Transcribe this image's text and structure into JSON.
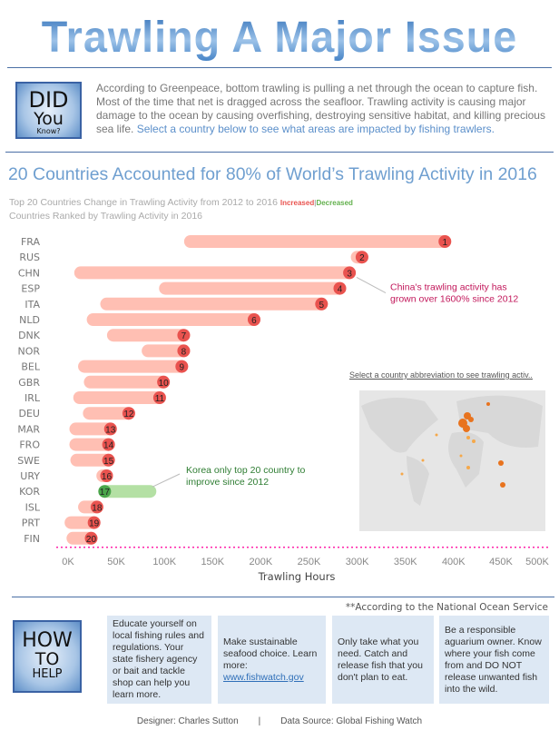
{
  "title": "Trawling A Major Issue",
  "did_you_know": {
    "line1": "DID",
    "line2": "You",
    "line3": "Know?"
  },
  "intro": {
    "text": "According to Greenpeace, bottom trawling is pulling a net through the ocean to capture fish. Most of the time that net is dragged across the seafloor. Trawling activity is causing major damage to the ocean by causing overfishing, destroying sensitive habitat, and killing precious sea life.",
    "highlight": "Select a country below to see what areas are impacted by fishing trawlers."
  },
  "headline": "20 Countries Accounted for 80% of World’s Trawling Activity in 2016",
  "subtitle": {
    "main": "Top 20 Countries Change in Trawling Activity from 2012 to 2016",
    "increased": "Increased",
    "sep": "|",
    "decreased": "Decreased",
    "line2": "Countries Ranked by Trawling Activity in 2016"
  },
  "colors": {
    "increased": "#e9534f",
    "increased_bar": "#ffbfb3",
    "decreased": "#4aa54a",
    "decreased_bar": "#b4e0a4"
  },
  "chart_data": {
    "type": "bar",
    "subtype": "dumbbell",
    "xlabel": "Trawling Hours",
    "xlim": [
      0,
      500000
    ],
    "ticks": [
      "0K",
      "50K",
      "100K",
      "150K",
      "200K",
      "250K",
      "300K",
      "350K",
      "400K",
      "450K",
      "500K"
    ],
    "tick_values": [
      0,
      50,
      100,
      150,
      200,
      250,
      300,
      350,
      400,
      450,
      500
    ],
    "categories": [
      "FRA",
      "RUS",
      "CHN",
      "ESP",
      "ITA",
      "NLD",
      "DNK",
      "NOR",
      "BEL",
      "GBR",
      "IRL",
      "DEU",
      "MAR",
      "FRO",
      "SWE",
      "URY",
      "KOR",
      "ISL",
      "PRT",
      "FIN"
    ],
    "series": [
      {
        "name": "2012 (K hours)",
        "values": [
          127,
          300,
          13,
          101,
          40,
          26,
          47,
          83,
          17,
          23,
          12,
          22,
          8,
          8,
          9,
          36,
          85,
          17,
          3,
          5
        ]
      },
      {
        "name": "2016 (K hours)",
        "values": [
          391,
          305,
          292,
          282,
          263,
          193,
          120,
          120,
          118,
          99,
          95,
          63,
          44,
          42,
          42,
          40,
          38,
          30,
          27,
          24
        ]
      }
    ],
    "ranks": [
      "1",
      "2",
      "3",
      "4",
      "5",
      "6",
      "7",
      "8",
      "9",
      "10",
      "11",
      "12",
      "13",
      "14",
      "15",
      "16",
      "17",
      "18",
      "19",
      "20"
    ],
    "annotations": [
      {
        "text_l1": "China's trawling activity has",
        "text_l2": "grown over 1600% since 2012",
        "target": "CHN"
      },
      {
        "text_l1": "Korea only top 20 country to",
        "text_l2": "improve since 2012",
        "target": "KOR"
      }
    ]
  },
  "map": {
    "title": "Select a country abbreviation to see trawling activ.."
  },
  "how_to_help": {
    "line1": "HOW",
    "line2": "TO",
    "line3": "HELP",
    "note": "**According to the National Ocean Service",
    "tips": [
      {
        "text": "Educate yourself on local fishing rules and regulations. Your state fishery agency or bait and tackle shop can help you learn more."
      },
      {
        "text": "Make sustainable seafood choice. Learn more:",
        "link": "www.fishwatch.gov"
      },
      {
        "text": "Only take what you need. Catch and release fish that you don't plan to eat."
      },
      {
        "text": "Be a responsible aguarium owner. Know where your fish come from and DO NOT release unwanted fish into the wild."
      }
    ]
  },
  "footer": {
    "designer": "Designer: Charles Sutton",
    "sep": "|",
    "source": "Data Source: Global Fishing Watch"
  }
}
